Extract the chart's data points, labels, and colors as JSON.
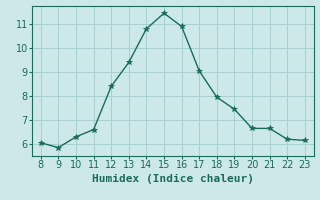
{
  "x": [
    8,
    9,
    10,
    11,
    12,
    13,
    14,
    15,
    16,
    17,
    18,
    19,
    20,
    21,
    22,
    23
  ],
  "y": [
    6.05,
    5.85,
    6.3,
    6.6,
    8.4,
    9.4,
    10.8,
    11.45,
    10.9,
    9.05,
    7.95,
    7.45,
    6.65,
    6.65,
    6.2,
    6.15
  ],
  "line_color": "#1a6b5a",
  "marker": "*",
  "marker_size": 4,
  "bg_color": "#cce8e8",
  "grid_color": "#a8d0d0",
  "xlabel": "Humidex (Indice chaleur)",
  "xlim": [
    7.5,
    23.5
  ],
  "ylim": [
    5.5,
    11.75
  ],
  "xticks": [
    8,
    9,
    10,
    11,
    12,
    13,
    14,
    15,
    16,
    17,
    18,
    19,
    20,
    21,
    22,
    23
  ],
  "yticks": [
    6,
    7,
    8,
    9,
    10,
    11
  ],
  "tick_font_size": 7,
  "label_font_size": 8,
  "tick_color": "#1a6b5a",
  "axis_color": "#1a6b5a",
  "line_width": 1.0
}
